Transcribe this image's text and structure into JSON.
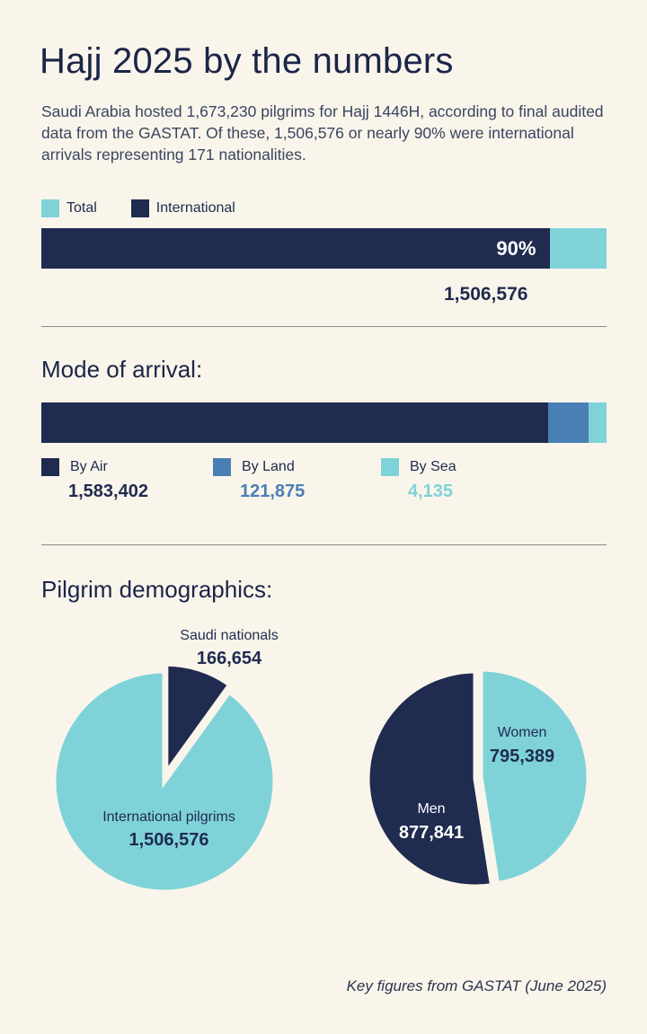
{
  "title": "Hajj 2025 by the numbers",
  "intro": "Saudi Arabia hosted 1,673,230 pilgrims for Hajj 1446H, according to final audited data from the GASTAT. Of these, 1,506,576 or nearly 90% were international arrivals representing 171 nationalities.",
  "colors": {
    "navy": "#1f2b4f",
    "blue": "#4a7fb5",
    "teal": "#7fd3d8",
    "background": "#faf5eb"
  },
  "chart_data": [
    {
      "type": "bar",
      "legend": [
        "Total",
        "International"
      ],
      "total": 1673230,
      "international": 1506576,
      "international_share": 0.9,
      "bar_label": "90%",
      "value_label": "1,506,576"
    },
    {
      "type": "bar",
      "title": "Mode of arrival:",
      "categories": [
        "By Air",
        "By Land",
        "By Sea"
      ],
      "values": [
        1583402,
        121875,
        4135
      ],
      "value_labels": [
        "1,583,402",
        "121,875",
        "4,135"
      ]
    },
    {
      "type": "pie",
      "title": "Pilgrim demographics:",
      "slices": [
        {
          "label": "Saudi nationals",
          "value": 166654,
          "value_label": "166,654"
        },
        {
          "label": "International pilgrims",
          "value": 1506576,
          "value_label": "1,506,576"
        }
      ]
    },
    {
      "type": "pie",
      "slices": [
        {
          "label": "Women",
          "value": 795389,
          "value_label": "795,389"
        },
        {
          "label": "Men",
          "value": 877841,
          "value_label": "877,841"
        }
      ]
    }
  ],
  "source": "Key figures from GASTAT (June 2025)"
}
